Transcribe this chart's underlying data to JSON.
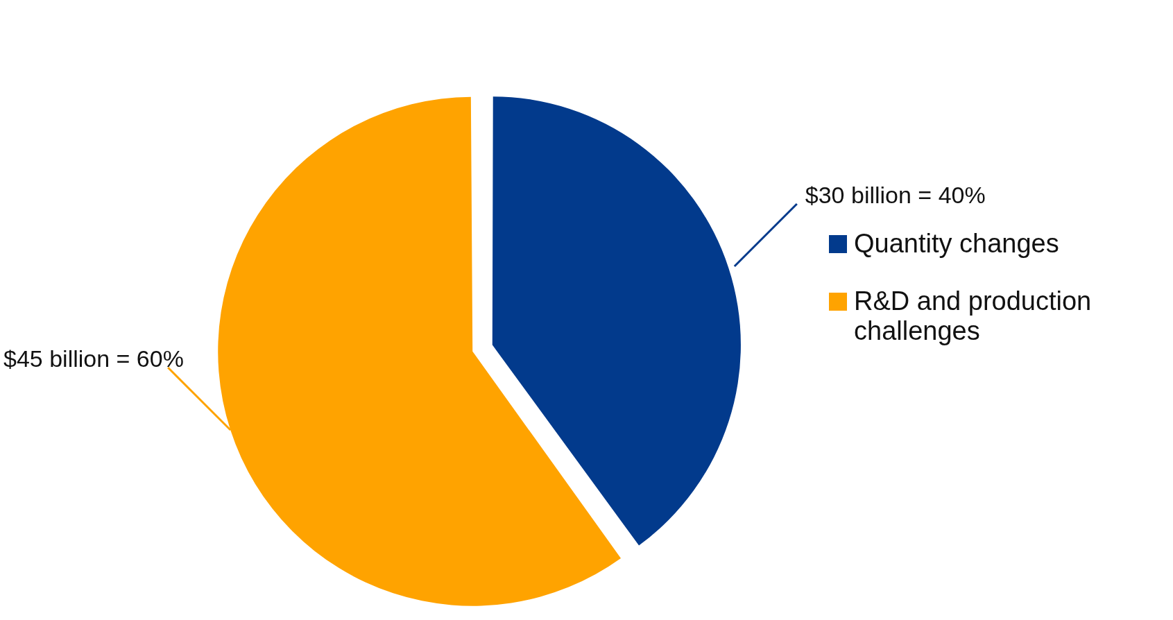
{
  "chart_data": {
    "type": "pie",
    "categories": [
      "Quantity changes",
      "R&D and production challenges"
    ],
    "values": [
      40,
      60
    ],
    "colors": [
      "#023a8c",
      "#ffa300"
    ],
    "value_labels": [
      "$30 billion = 40%",
      "$45 billion = 60%"
    ],
    "legend": "right"
  }
}
